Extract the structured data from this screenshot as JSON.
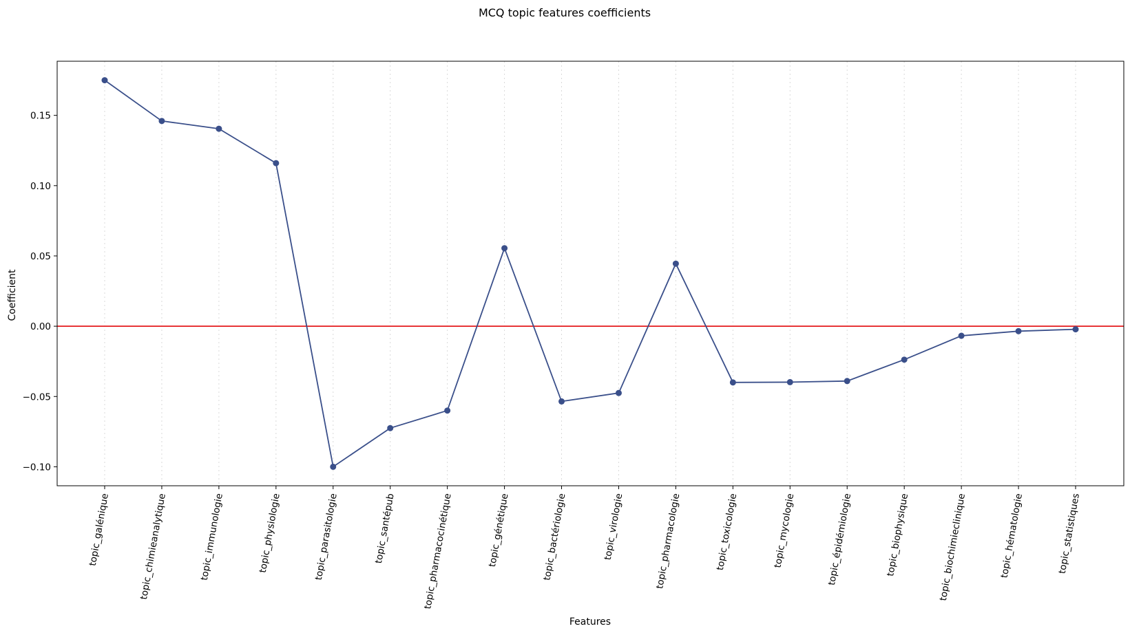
{
  "chart_data": {
    "type": "line",
    "title": "MCQ topic features coefficients",
    "xlabel": "Features",
    "ylabel": "Coefficient",
    "categories": [
      "topic_galénique",
      "topic_chimieanalytique",
      "topic_immunologie",
      "topic_physiologie",
      "topic_parasitologie",
      "topic_santépub",
      "topic_pharmacocinétique",
      "topic_génétique",
      "topic_bactériologie",
      "topic_virologie",
      "topic_pharmacologie",
      "topic_toxicologie",
      "topic_mycologie",
      "topic_épidémiologie",
      "topic_biophysique",
      "topic_biochimieclinique",
      "topic_hématologie",
      "topic_statistiques"
    ],
    "series": [
      {
        "values": [
          0.175,
          0.146,
          0.1405,
          0.116,
          -0.1,
          -0.0725,
          -0.06,
          0.0555,
          -0.0535,
          -0.0475,
          0.0445,
          -0.04,
          -0.0398,
          -0.039,
          -0.0238,
          -0.0068,
          -0.0035,
          -0.0022
        ]
      }
    ],
    "ylim": [
      -0.1135,
      0.1885
    ],
    "yticks": [
      -0.1,
      -0.05,
      0.0,
      0.05,
      0.1,
      0.15
    ],
    "ytick_labels": [
      "−0.10",
      "−0.05",
      "0.00",
      "0.05",
      "0.10",
      "0.15"
    ],
    "reference_line": {
      "y": 0.0
    },
    "line_color": "#3a4f8a",
    "reference_color": "#e41a1c",
    "grid": "x-dotted",
    "x_tick_rotation": -80
  }
}
